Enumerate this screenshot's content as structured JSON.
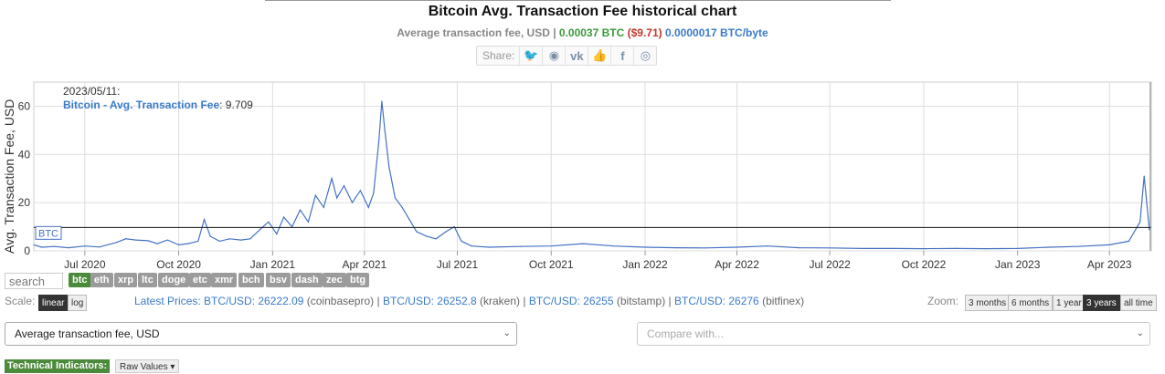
{
  "header": {
    "title": "Bitcoin Avg. Transaction Fee historical chart",
    "sub_label": "Average transaction fee, USD",
    "sub_sep": " | ",
    "sub_btc": "0.00037 BTC",
    "sub_usd": "($9.71)",
    "sub_byte": "0.0000017 BTC/byte",
    "share_label": "Share:",
    "share_icons": [
      "twitter-icon",
      "reddit-icon",
      "vk-icon",
      "like-icon",
      "facebook-icon",
      "weibo-icon"
    ]
  },
  "tooltip": {
    "date": "2023/05/11:",
    "series": "Bitcoin - Avg. Transaction Fee",
    "value": ": 9.709"
  },
  "chart_data": {
    "type": "line",
    "ylabel": "Avg. Transaction Fee, USD",
    "xlabel": "",
    "ylim": [
      0,
      70
    ],
    "yticks": [
      0,
      20,
      40,
      60
    ],
    "xticks": [
      "Jul 2020",
      "Oct 2020",
      "Jan 2021",
      "Apr 2021",
      "Jul 2021",
      "Oct 2021",
      "Jan 2022",
      "Apr 2022",
      "Jul 2022",
      "Oct 2022",
      "Jan 2023",
      "Apr 2023"
    ],
    "xrange": [
      "2020-05-12",
      "2023-05-12"
    ],
    "current_value_line": 9.709,
    "marker_label": "BTC",
    "series": [
      {
        "name": "Bitcoin - Avg. Transaction Fee",
        "color": "#4472c4",
        "x": [
          "2020-05-12",
          "2020-05-20",
          "2020-06-01",
          "2020-06-15",
          "2020-07-01",
          "2020-07-15",
          "2020-08-01",
          "2020-08-10",
          "2020-08-20",
          "2020-09-01",
          "2020-09-10",
          "2020-09-20",
          "2020-10-01",
          "2020-10-10",
          "2020-10-20",
          "2020-10-26",
          "2020-11-01",
          "2020-11-10",
          "2020-11-20",
          "2020-12-01",
          "2020-12-10",
          "2020-12-20",
          "2020-12-28",
          "2021-01-05",
          "2021-01-12",
          "2021-01-20",
          "2021-01-28",
          "2021-02-05",
          "2021-02-12",
          "2021-02-20",
          "2021-02-28",
          "2021-03-05",
          "2021-03-12",
          "2021-03-20",
          "2021-03-28",
          "2021-04-05",
          "2021-04-10",
          "2021-04-15",
          "2021-04-18",
          "2021-04-21",
          "2021-04-25",
          "2021-05-01",
          "2021-05-08",
          "2021-05-15",
          "2021-05-22",
          "2021-06-01",
          "2021-06-10",
          "2021-06-20",
          "2021-06-28",
          "2021-07-05",
          "2021-07-15",
          "2021-08-01",
          "2021-09-01",
          "2021-10-01",
          "2021-11-01",
          "2021-12-01",
          "2022-01-01",
          "2022-02-01",
          "2022-03-01",
          "2022-04-01",
          "2022-05-01",
          "2022-06-01",
          "2022-07-01",
          "2022-08-01",
          "2022-09-01",
          "2022-10-01",
          "2022-11-01",
          "2022-12-01",
          "2023-01-01",
          "2023-02-01",
          "2023-03-01",
          "2023-04-01",
          "2023-04-20",
          "2023-05-01",
          "2023-05-05",
          "2023-05-08",
          "2023-05-10",
          "2023-05-11"
        ],
        "values": [
          2.5,
          1.5,
          1.8,
          1.3,
          2.0,
          1.6,
          3.5,
          5.0,
          4.5,
          4.2,
          3.0,
          4.5,
          2.5,
          3.0,
          4.0,
          13.0,
          6.0,
          4.0,
          5.0,
          4.5,
          5.0,
          9.0,
          12.0,
          7.0,
          14.0,
          10.0,
          17.0,
          12.0,
          23.0,
          18.0,
          30.0,
          22.0,
          27.0,
          20.0,
          25.0,
          18.0,
          24.0,
          45.0,
          62.0,
          50.0,
          35.0,
          22.0,
          18.0,
          13.0,
          8.0,
          6.0,
          5.0,
          8.0,
          10.0,
          4.0,
          2.0,
          1.5,
          1.8,
          2.0,
          3.0,
          2.0,
          1.5,
          1.3,
          1.2,
          1.5,
          2.0,
          1.3,
          1.2,
          1.0,
          1.0,
          0.9,
          1.0,
          0.9,
          1.0,
          1.5,
          1.8,
          2.5,
          4.0,
          12.0,
          31.0,
          18.0,
          9.0,
          9.7
        ]
      }
    ]
  },
  "controls": {
    "search_placeholder": "search",
    "coins": [
      "btc",
      "eth",
      "xrp",
      "ltc",
      "doge",
      "etc",
      "xmr",
      "bch",
      "bsv",
      "dash",
      "zec",
      "btg"
    ],
    "selected_coin": "btc",
    "scale_label": "Scale:",
    "scale_linear": "linear",
    "scale_log": "log",
    "prices_label": "Latest Prices:",
    "prices": [
      {
        "pair": "BTC/USD: 26222.09",
        "exchange": " (coinbasepro)"
      },
      {
        "pair": "BTC/USD: 26252.8",
        "exchange": " (kraken)"
      },
      {
        "pair": "BTC/USD: 26255",
        "exchange": " (bitstamp)"
      },
      {
        "pair": "BTC/USD: 26276",
        "exchange": " (bitfinex)"
      }
    ],
    "zoom_label": "Zoom:",
    "zoom_options": [
      "3 months",
      "6 months",
      "1 year",
      "3 years",
      "all time"
    ],
    "zoom_selected": "3 years",
    "metric_select": "Average transaction fee, USD",
    "compare_placeholder": "Compare with...",
    "technical_indicators": "Technical Indicators:",
    "raw_values": "Raw Values ▾"
  }
}
